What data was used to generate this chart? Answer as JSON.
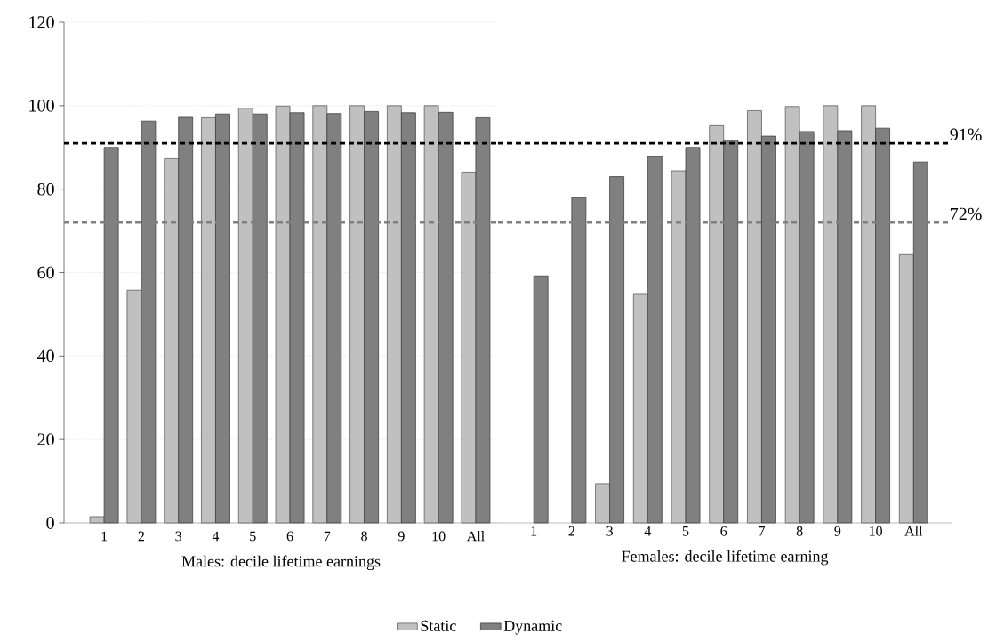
{
  "chart_data": [
    {
      "type": "bar",
      "xlabel": "Males: decile lifetime earnings",
      "categories": [
        "1",
        "2",
        "3",
        "4",
        "5",
        "6",
        "7",
        "8",
        "9",
        "10",
        "All"
      ],
      "series": [
        {
          "name": "Static",
          "color": "#c0c0c0",
          "values": [
            1.5,
            55.8,
            87.3,
            97.1,
            99.4,
            99.9,
            100,
            100,
            100,
            100,
            84.1
          ]
        },
        {
          "name": "Dynamic",
          "color": "#808080",
          "values": [
            90.0,
            96.3,
            97.2,
            98.0,
            98.0,
            98.3,
            98.1,
            98.6,
            98.3,
            98.4,
            97.1
          ]
        }
      ],
      "ylim": [
        0,
        120
      ],
      "yticks": [
        0,
        20,
        40,
        60,
        80,
        100,
        120
      ],
      "grid": "y",
      "legend": "bottom",
      "ref_lines": [
        {
          "axis": "y",
          "value": 91,
          "color": "#000000",
          "line_style": "dashed"
        },
        {
          "axis": "y",
          "value": 72,
          "color": "#808080",
          "line_style": "dashed"
        }
      ]
    },
    {
      "type": "bar",
      "xlabel": "Females: decile lifetime earning",
      "categories": [
        "1",
        "2",
        "3",
        "4",
        "5",
        "6",
        "7",
        "8",
        "9",
        "10",
        "All"
      ],
      "series": [
        {
          "color": "#c0c0c0",
          "values": [
            null,
            null,
            9.4,
            54.8,
            84.4,
            95.2,
            98.8,
            99.8,
            100,
            100,
            64.3
          ]
        },
        {
          "color": "#808080",
          "values": [
            59.2,
            78.0,
            83.0,
            87.8,
            90.0,
            91.7,
            92.7,
            93.8,
            94.0,
            94.6,
            86.5
          ]
        }
      ],
      "ylim": [
        0,
        120
      ],
      "yticks": [
        0,
        20,
        40,
        60,
        80,
        100,
        120
      ],
      "grid": "y",
      "tick_labels": "x",
      "ref_lines": [
        {
          "axis": "y",
          "value": 91,
          "label": "91%",
          "color": "#000000",
          "line_style": "dashed"
        },
        {
          "axis": "y",
          "value": 72,
          "label": "72%",
          "color": "#808080",
          "line_style": "dashed"
        }
      ]
    }
  ]
}
